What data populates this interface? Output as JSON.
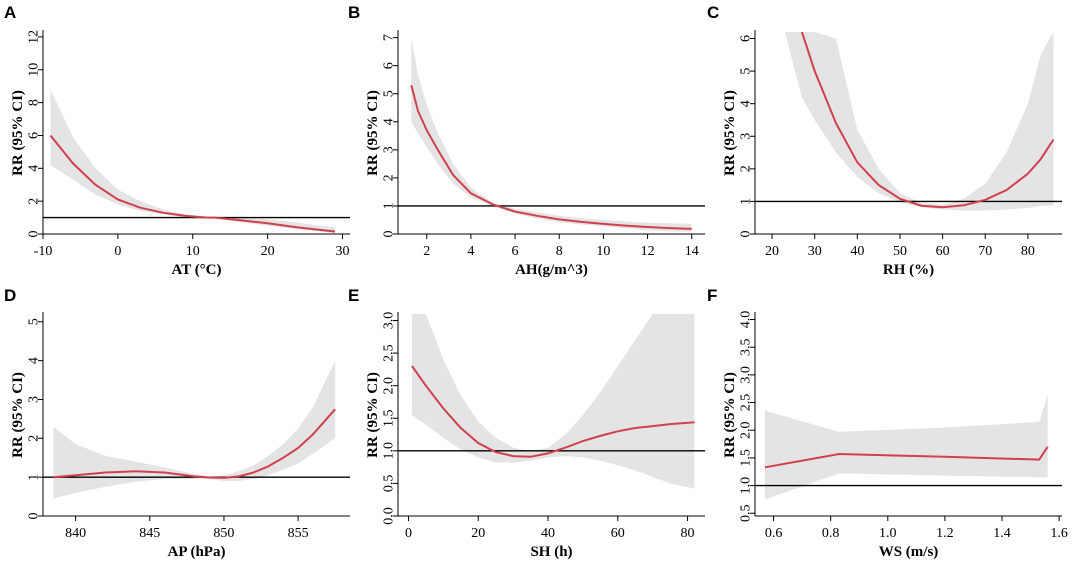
{
  "colors": {
    "curve": "#d0404f",
    "band": "#e4e4e4",
    "ref": "#000000",
    "axis": "#000000"
  },
  "chart_data": [
    {
      "panel": "A",
      "type": "line",
      "xlabel": "AT (°C)",
      "ylabel": "RR (95% CI)",
      "xlim": [
        -10,
        31
      ],
      "ylim": [
        0,
        12.3
      ],
      "xticks": [
        -10,
        0,
        10,
        20,
        30
      ],
      "yticks": [
        0,
        2,
        4,
        6,
        8,
        10,
        12
      ],
      "ref": 1,
      "ytick_rot": false,
      "x": [
        -9,
        -6,
        -3,
        0,
        3,
        6,
        9,
        12,
        13,
        16,
        20,
        24,
        27,
        29
      ],
      "y": [
        6.0,
        4.3,
        3.0,
        2.1,
        1.6,
        1.3,
        1.1,
        1.0,
        1.0,
        0.85,
        0.65,
        0.4,
        0.25,
        0.15
      ],
      "lower": [
        4.2,
        3.3,
        2.4,
        1.8,
        1.4,
        1.2,
        1.0,
        0.95,
        0.95,
        0.75,
        0.5,
        0.28,
        0.15,
        0.05
      ],
      "upper": [
        8.8,
        5.9,
        4.0,
        2.7,
        2.0,
        1.5,
        1.2,
        1.05,
        1.05,
        1.0,
        0.9,
        0.7,
        0.5,
        0.4
      ]
    },
    {
      "panel": "B",
      "type": "line",
      "xlabel": "AH(g/m^3)",
      "ylabel": "RR (95% CI)",
      "xlim": [
        0.7,
        14.6
      ],
      "ylim": [
        0,
        7.2
      ],
      "xticks": [
        2,
        4,
        6,
        8,
        10,
        12,
        14
      ],
      "yticks": [
        0,
        1,
        2,
        3,
        4,
        5,
        6,
        7
      ],
      "ref": 1,
      "ytick_rot": false,
      "x": [
        1.3,
        1.6,
        2,
        2.5,
        3.2,
        4,
        5,
        6,
        7,
        8,
        9,
        10,
        11,
        12,
        13,
        14
      ],
      "y": [
        5.3,
        4.4,
        3.7,
        3.0,
        2.1,
        1.45,
        1.05,
        0.8,
        0.65,
        0.52,
        0.43,
        0.36,
        0.3,
        0.25,
        0.21,
        0.18
      ],
      "lower": [
        4.0,
        3.6,
        3.1,
        2.5,
        1.8,
        1.3,
        0.98,
        0.72,
        0.55,
        0.42,
        0.34,
        0.27,
        0.2,
        0.14,
        0.1,
        0.08
      ],
      "upper": [
        7.0,
        5.7,
        4.6,
        3.6,
        2.5,
        1.65,
        1.12,
        0.9,
        0.77,
        0.65,
        0.56,
        0.5,
        0.45,
        0.4,
        0.38,
        0.36
      ]
    },
    {
      "panel": "C",
      "type": "line",
      "xlabel": "RH (%)",
      "ylabel": "RR (95% CI)",
      "xlim": [
        16,
        88
      ],
      "ylim": [
        0,
        6.2
      ],
      "xticks": [
        20,
        30,
        40,
        50,
        60,
        70,
        80
      ],
      "yticks": [
        0,
        1,
        2,
        3,
        4,
        5,
        6
      ],
      "ref": 1,
      "ytick_rot": false,
      "x": [
        27,
        30,
        35,
        40,
        45,
        50,
        55,
        60,
        65,
        70,
        75,
        80,
        83,
        86
      ],
      "y": [
        6.2,
        5.0,
        3.4,
        2.2,
        1.5,
        1.08,
        0.87,
        0.82,
        0.88,
        1.05,
        1.35,
        1.85,
        2.3,
        2.9
      ],
      "lower": [
        4.2,
        3.5,
        2.5,
        1.75,
        1.25,
        0.98,
        0.82,
        0.75,
        0.72,
        0.72,
        0.75,
        0.8,
        0.85,
        0.88
      ],
      "upper": [
        6.3,
        6.3,
        6.0,
        3.2,
        2.0,
        1.25,
        0.95,
        0.9,
        1.08,
        1.55,
        2.5,
        4.0,
        5.5,
        6.3
      ],
      "band_x0": 23
    },
    {
      "panel": "D",
      "type": "line",
      "xlabel": "AP (hPa)",
      "ylabel": "RR (95% CI)",
      "xlim": [
        837.8,
        858.5
      ],
      "ylim": [
        0,
        5.2
      ],
      "xticks": [
        840,
        845,
        850,
        855
      ],
      "yticks": [
        0,
        1,
        2,
        3,
        4,
        5
      ],
      "ref": 1,
      "ytick_rot": false,
      "x": [
        838.5,
        840,
        842,
        844,
        846,
        848,
        849,
        850,
        851,
        852,
        853,
        854,
        855,
        856,
        857.5
      ],
      "y": [
        1.0,
        1.05,
        1.12,
        1.15,
        1.12,
        1.02,
        0.99,
        0.98,
        1.02,
        1.12,
        1.28,
        1.5,
        1.75,
        2.1,
        2.75
      ],
      "lower": [
        0.45,
        0.6,
        0.75,
        0.88,
        0.95,
        0.96,
        0.95,
        0.9,
        0.9,
        0.95,
        1.05,
        1.2,
        1.35,
        1.6,
        2.0
      ],
      "upper": [
        2.3,
        1.85,
        1.55,
        1.4,
        1.25,
        1.08,
        1.02,
        1.05,
        1.15,
        1.3,
        1.55,
        1.85,
        2.25,
        2.8,
        4.0
      ]
    },
    {
      "panel": "E",
      "type": "line",
      "xlabel": "SH (h)",
      "ylabel": "RR (95% CI)",
      "xlim": [
        -3,
        85
      ],
      "ylim": [
        0,
        3.1
      ],
      "xticks": [
        0,
        20,
        40,
        60,
        80
      ],
      "yticks": [
        0.0,
        0.5,
        1.0,
        1.5,
        2.0,
        2.5,
        3.0
      ],
      "ref": 1,
      "ytick_rot": false,
      "x": [
        1,
        5,
        10,
        15,
        20,
        25,
        30,
        35,
        40,
        45,
        50,
        55,
        60,
        65,
        70,
        75,
        82
      ],
      "y": [
        2.3,
        2.0,
        1.65,
        1.35,
        1.12,
        0.98,
        0.92,
        0.91,
        0.96,
        1.05,
        1.15,
        1.23,
        1.3,
        1.35,
        1.38,
        1.41,
        1.44
      ],
      "lower": [
        1.55,
        1.4,
        1.2,
        1.02,
        0.9,
        0.82,
        0.82,
        0.85,
        0.9,
        0.92,
        0.9,
        0.85,
        0.78,
        0.7,
        0.6,
        0.5,
        0.42
      ],
      "upper": [
        3.12,
        3.12,
        2.4,
        1.85,
        1.45,
        1.2,
        1.05,
        0.99,
        1.05,
        1.25,
        1.55,
        1.9,
        2.3,
        2.7,
        3.12,
        3.12,
        3.12
      ]
    },
    {
      "panel": "F",
      "type": "line",
      "xlabel": "WS (m/s)",
      "ylabel": "RR (95% CI)",
      "xlim": [
        0.535,
        1.61
      ],
      "ylim": [
        0.45,
        4.1
      ],
      "xticks": [
        0.6,
        0.8,
        1.0,
        1.2,
        1.4,
        1.6
      ],
      "yticks": [
        0.5,
        1.0,
        1.5,
        2.0,
        2.5,
        3.0,
        3.5,
        4.0
      ],
      "ytick_labels": [
        "0.5",
        "1.0",
        "1.5",
        "2.0",
        "2.5",
        "3.0",
        "3.5",
        "4.0"
      ],
      "ref": 1,
      "ytick_rot": true,
      "x": [
        0.57,
        0.83,
        1.2,
        1.53,
        1.56
      ],
      "y": [
        1.33,
        1.57,
        1.52,
        1.47,
        1.7
      ],
      "lower": [
        0.75,
        1.22,
        1.18,
        1.15,
        1.15
      ],
      "upper": [
        2.35,
        1.97,
        2.05,
        2.15,
        2.65
      ]
    }
  ]
}
